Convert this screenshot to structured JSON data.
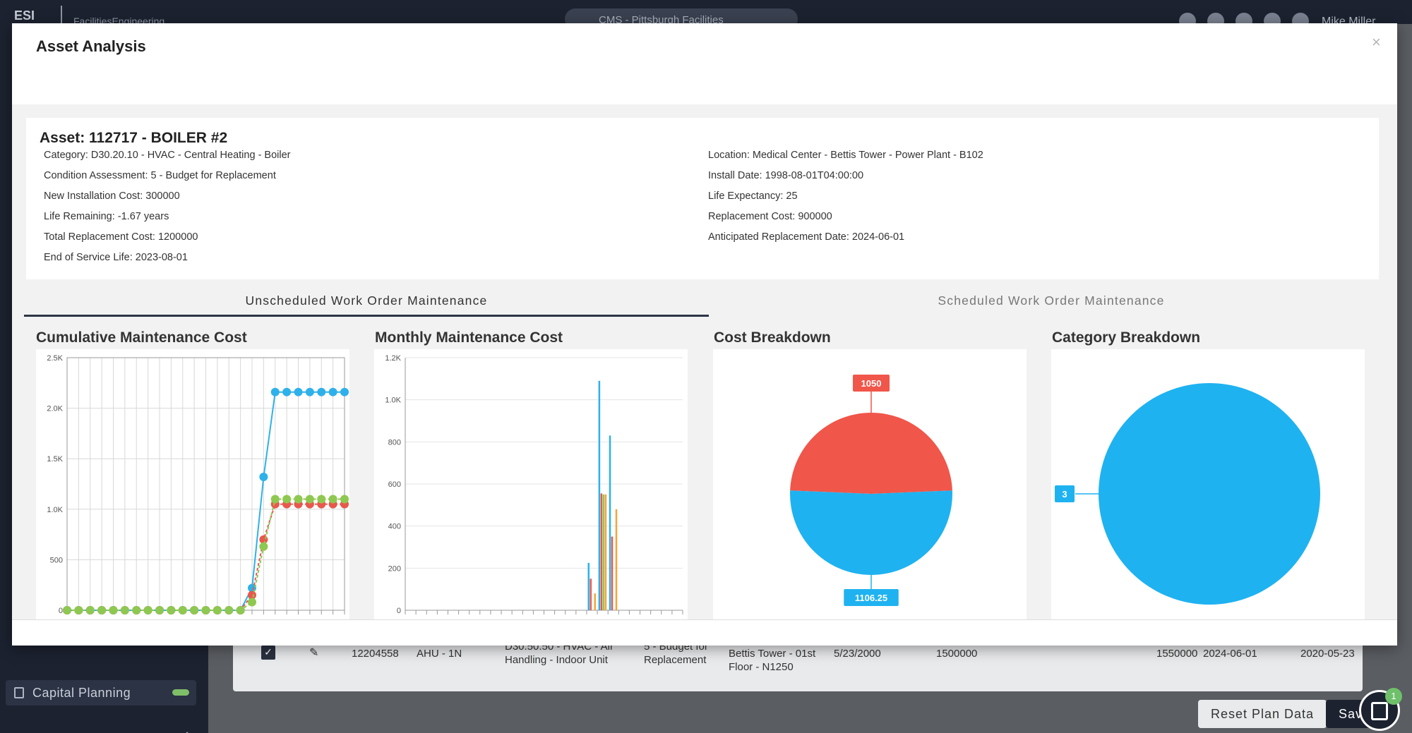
{
  "topbar": {
    "brand": "ESI",
    "brand_sub": "FacilitiesEngineering",
    "search_text": "CMS - Pittsburgh Facilities",
    "user": "Mike Miller"
  },
  "sidebar": {
    "item_label": "Capital Planning"
  },
  "background_row": {
    "id": "12204558",
    "name": "AHU - 1N",
    "category": "D30.50.50 - HVAC - Air Handling - Indoor Unit",
    "condition": "5 - Budget for Replacement",
    "location": "Bettis Tower - 01st Floor - N1250",
    "install": "5/23/2000",
    "cost": "1500000",
    "replacement": "1550000",
    "date": "2024-06-01",
    "end_date": "2020-05-23"
  },
  "buttons": {
    "reset": "Reset Plan Data",
    "save": "Save"
  },
  "fab": {
    "badge": "1"
  },
  "modal": {
    "title": "Asset Analysis",
    "close": "×",
    "asset_title": "Asset: 112717 - BOILER #2",
    "left": [
      "Category: D30.20.10 - HVAC - Central Heating - Boiler",
      "Condition Assessment: 5 - Budget for Replacement",
      "New Installation Cost: 300000",
      "Life Remaining: -1.67 years",
      "Total Replacement Cost: 1200000",
      "End of Service Life: 2023-08-01"
    ],
    "right": [
      "Location: Medical Center - Bettis Tower - Power Plant - B102",
      "Install Date: 1998-08-01T04:00:00",
      "Life Expectancy: 25",
      "Replacement Cost: 900000",
      "Anticipated Replacement Date: 2024-06-01"
    ],
    "tabs": [
      "Unscheduled Work Order Maintenance",
      "Scheduled Work Order Maintenance"
    ],
    "chart_titles": [
      "Cumulative Maintenance Cost",
      "Monthly Maintenance Cost",
      "Cost Breakdown",
      "Category Breakdown"
    ]
  },
  "chart_data": [
    {
      "type": "line",
      "title": "Cumulative Maintenance Cost",
      "ylim": [
        0,
        2500
      ],
      "yticks": [
        0,
        500,
        1000,
        1500,
        2000,
        2500
      ],
      "ytick_labels": [
        "0",
        "500",
        "1.0K",
        "1.5K",
        "2.0K",
        "2.5K"
      ],
      "grid": true,
      "colors": [
        "#2eb1ea",
        "#e8584c",
        "#8fc850"
      ],
      "series": [
        {
          "values": [
            0,
            0,
            0,
            0,
            0,
            0,
            0,
            0,
            0,
            0,
            0,
            0,
            0,
            0,
            0,
            0,
            220,
            1320,
            2160,
            2160,
            2160,
            2160,
            2160,
            2160,
            2160
          ]
        },
        {
          "values": [
            0,
            0,
            0,
            0,
            0,
            0,
            0,
            0,
            0,
            0,
            0,
            0,
            0,
            0,
            0,
            0,
            150,
            700,
            1050,
            1050,
            1050,
            1050,
            1050,
            1050,
            1050
          ]
        },
        {
          "values": [
            0,
            0,
            0,
            0,
            0,
            0,
            0,
            0,
            0,
            0,
            0,
            0,
            0,
            0,
            0,
            0,
            80,
            630,
            1100,
            1100,
            1100,
            1100,
            1100,
            1100,
            1100
          ]
        }
      ]
    },
    {
      "type": "bar",
      "title": "Monthly Maintenance Cost",
      "ylim": [
        0,
        1200
      ],
      "yticks": [
        0,
        200,
        400,
        600,
        800,
        1000,
        1200
      ],
      "ytick_labels": [
        "0",
        "200",
        "400",
        "600",
        "800",
        "1.0K",
        "1.2K"
      ],
      "grid": true,
      "colors": [
        "#2eb1ea",
        "#e8584c",
        "#8fc850",
        "#f0a63c"
      ],
      "groups": [
        {
          "index": 17,
          "values": [
            225,
            150,
            0,
            80
          ]
        },
        {
          "index": 18,
          "values": [
            1090,
            555,
            550,
            550
          ]
        },
        {
          "index": 19,
          "values": [
            830,
            350,
            0,
            480
          ]
        }
      ],
      "n_slots": 26
    },
    {
      "type": "pie",
      "title": "Cost Breakdown",
      "slices": [
        {
          "label": "1050",
          "value": 1050,
          "color": "#f0564a"
        },
        {
          "label": "1106.25",
          "value": 1106.25,
          "color": "#1fb2f0"
        }
      ]
    },
    {
      "type": "pie",
      "title": "Category Breakdown",
      "slices": [
        {
          "label": "3",
          "value": 3,
          "color": "#1fb2f0"
        }
      ]
    }
  ]
}
